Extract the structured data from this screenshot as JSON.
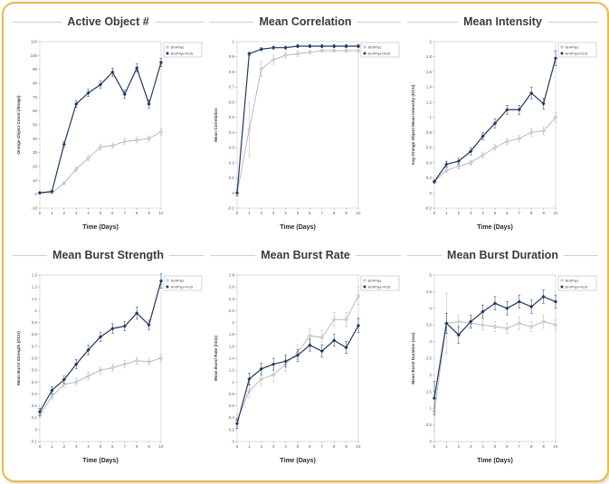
{
  "page": {
    "border_color": "#e9ba4b",
    "background": "#ffffff"
  },
  "colors": {
    "series_light": "#b3b3b3",
    "series_light_fill": "#d9d9d9",
    "series_dark": "#1f3a5f",
    "axis_gray": "#9a9a9a",
    "tick_text": "#595959",
    "title_text": "#3b3b3b"
  },
  "legend": {
    "entries": [
      "BrnPhys",
      "BrnPhys+FUS"
    ]
  },
  "chart_data": [
    {
      "type": "line",
      "title": "Active Object #",
      "xlabel": "Time (Days)",
      "ylabel": "Orange Object Count (/Image)",
      "x": [
        0,
        1,
        2,
        3,
        4,
        5,
        6,
        7,
        8,
        9,
        10
      ],
      "ylim": [
        -10,
        110
      ],
      "ytick": 10,
      "grid": false,
      "legend_position": "top-right",
      "series": [
        {
          "name": "BrnPhys",
          "color": "#b3b3b3",
          "marker": "diamond-open",
          "values": [
            1,
            1,
            8,
            18,
            26,
            34,
            35,
            38,
            39,
            40,
            45
          ],
          "err": [
            0.5,
            0.5,
            1,
            1.5,
            2,
            2,
            2,
            2,
            2,
            2,
            2.5
          ]
        },
        {
          "name": "BrnPhys+FUS",
          "color": "#1f3a5f",
          "marker": "diamond-filled",
          "values": [
            1,
            2,
            36,
            65,
            73,
            79,
            88,
            72,
            91,
            65,
            95
          ],
          "err": [
            0.5,
            0.5,
            2,
            2.5,
            2.5,
            2.5,
            3,
            3,
            3,
            3,
            3
          ]
        }
      ]
    },
    {
      "type": "line",
      "title": "Mean Correlation",
      "xlabel": "Time (Days)",
      "ylabel": "Mean Correlation",
      "x": [
        0,
        1,
        2,
        3,
        4,
        5,
        6,
        7,
        8,
        9,
        10
      ],
      "ylim": [
        -0.1,
        1.0
      ],
      "ytick": 0.1,
      "grid": false,
      "legend_position": "top-right",
      "series": [
        {
          "name": "BrnPhys",
          "color": "#b3b3b3",
          "marker": "diamond-open",
          "values": [
            0,
            0.42,
            0.82,
            0.88,
            0.91,
            0.92,
            0.93,
            0.94,
            0.94,
            0.94,
            0.94
          ],
          "err": [
            0.02,
            0.18,
            0.05,
            0.03,
            0.02,
            0.02,
            0.01,
            0.01,
            0.01,
            0.01,
            0.01
          ]
        },
        {
          "name": "BrnPhys+FUS",
          "color": "#1f3a5f",
          "marker": "diamond-filled",
          "values": [
            0,
            0.92,
            0.95,
            0.96,
            0.96,
            0.97,
            0.97,
            0.97,
            0.97,
            0.97,
            0.97
          ],
          "err": [
            0.02,
            0.01,
            0.01,
            0.01,
            0.01,
            0.01,
            0.01,
            0.01,
            0.01,
            0.01,
            0.01
          ]
        }
      ]
    },
    {
      "type": "line",
      "title": "Mean Intensity",
      "xlabel": "Time (Days)",
      "ylabel": "Avg Orange Object Mean Intensity (OCU)",
      "x": [
        0,
        1,
        2,
        3,
        4,
        5,
        6,
        7,
        8,
        9,
        10
      ],
      "ylim": [
        -0.2,
        2.0
      ],
      "ytick": 0.2,
      "grid": false,
      "legend_position": "top-right",
      "series": [
        {
          "name": "BrnPhys",
          "color": "#b3b3b3",
          "marker": "diamond-open",
          "values": [
            0.15,
            0.3,
            0.35,
            0.4,
            0.5,
            0.6,
            0.68,
            0.72,
            0.8,
            0.82,
            1.0
          ],
          "err": [
            0.02,
            0.03,
            0.03,
            0.03,
            0.04,
            0.04,
            0.04,
            0.04,
            0.05,
            0.05,
            0.06
          ]
        },
        {
          "name": "BrnPhys+FUS",
          "color": "#1f3a5f",
          "marker": "diamond-filled",
          "values": [
            0.15,
            0.38,
            0.42,
            0.55,
            0.75,
            0.92,
            1.1,
            1.1,
            1.32,
            1.18,
            1.78
          ],
          "err": [
            0.02,
            0.04,
            0.04,
            0.05,
            0.05,
            0.06,
            0.06,
            0.06,
            0.08,
            0.07,
            0.1
          ]
        }
      ]
    },
    {
      "type": "line",
      "title": "Mean Burst Strength",
      "xlabel": "Time (Days)",
      "ylabel": "Mean Burst Strength (OCU)",
      "x": [
        0,
        1,
        2,
        3,
        4,
        5,
        6,
        7,
        8,
        9,
        10
      ],
      "ylim": [
        -0.1,
        1.3
      ],
      "ytick": 0.1,
      "grid": false,
      "legend_position": "top-right",
      "series": [
        {
          "name": "BrnPhys",
          "color": "#b3b3b3",
          "marker": "diamond-open",
          "values": [
            0.12,
            0.28,
            0.38,
            0.4,
            0.45,
            0.5,
            0.52,
            0.55,
            0.58,
            0.57,
            0.6
          ],
          "err": [
            0.02,
            0.03,
            0.03,
            0.03,
            0.03,
            0.03,
            0.03,
            0.03,
            0.03,
            0.03,
            0.03
          ]
        },
        {
          "name": "BrnPhys+FUS",
          "color": "#1f3a5f",
          "marker": "diamond-filled",
          "values": [
            0.15,
            0.33,
            0.42,
            0.55,
            0.67,
            0.78,
            0.85,
            0.87,
            0.98,
            0.88,
            1.25
          ],
          "err": [
            0.03,
            0.03,
            0.03,
            0.04,
            0.04,
            0.04,
            0.04,
            0.04,
            0.05,
            0.04,
            0.06
          ]
        }
      ]
    },
    {
      "type": "line",
      "title": "Mean Burst Rate",
      "xlabel": "Time (Days)",
      "ylabel": "Mean Burst Rate (/min)",
      "x": [
        0,
        1,
        2,
        3,
        4,
        5,
        6,
        7,
        8,
        9,
        10
      ],
      "ylim": [
        0,
        2.8
      ],
      "ytick": 0.2,
      "grid": false,
      "legend_position": "top-right",
      "series": [
        {
          "name": "BrnPhys",
          "color": "#b3b3b3",
          "marker": "diamond-open",
          "values": [
            0.35,
            0.85,
            1.05,
            1.12,
            1.3,
            1.5,
            1.78,
            1.75,
            2.05,
            2.05,
            2.45
          ],
          "err": [
            0.1,
            0.12,
            0.12,
            0.12,
            0.12,
            0.12,
            0.12,
            0.12,
            0.12,
            0.12,
            0.15
          ]
        },
        {
          "name": "BrnPhys+FUS",
          "color": "#1f3a5f",
          "marker": "diamond-filled",
          "values": [
            0.3,
            1.05,
            1.22,
            1.3,
            1.35,
            1.45,
            1.62,
            1.52,
            1.7,
            1.58,
            1.95
          ],
          "err": [
            0.08,
            0.1,
            0.1,
            0.1,
            0.1,
            0.1,
            0.1,
            0.1,
            0.1,
            0.1,
            0.12
          ]
        }
      ]
    },
    {
      "type": "line",
      "title": "Mean Burst Duration",
      "xlabel": "Time (Days)",
      "ylabel": "Mean Burst Duration (sec)",
      "x": [
        0,
        1,
        2,
        3,
        4,
        5,
        6,
        7,
        8,
        9,
        10
      ],
      "ylim": [
        0,
        5
      ],
      "ytick": 0.5,
      "grid": false,
      "legend_position": "top-right",
      "series": [
        {
          "name": "BrnPhys",
          "color": "#b3b3b3",
          "marker": "diamond-open",
          "values": [
            0.9,
            3.55,
            3.6,
            3.55,
            3.5,
            3.45,
            3.4,
            3.55,
            3.45,
            3.6,
            3.5
          ],
          "err": [
            0.6,
            0.9,
            0.2,
            0.15,
            0.15,
            0.15,
            0.15,
            0.2,
            0.15,
            0.2,
            0.15
          ]
        },
        {
          "name": "BrnPhys+FUS",
          "color": "#1f3a5f",
          "marker": "diamond-filled",
          "values": [
            1.3,
            3.55,
            3.2,
            3.6,
            3.9,
            4.15,
            4.0,
            4.2,
            4.05,
            4.35,
            4.2
          ],
          "err": [
            0.5,
            0.3,
            0.25,
            0.2,
            0.2,
            0.2,
            0.2,
            0.2,
            0.2,
            0.2,
            0.2
          ]
        }
      ]
    }
  ]
}
